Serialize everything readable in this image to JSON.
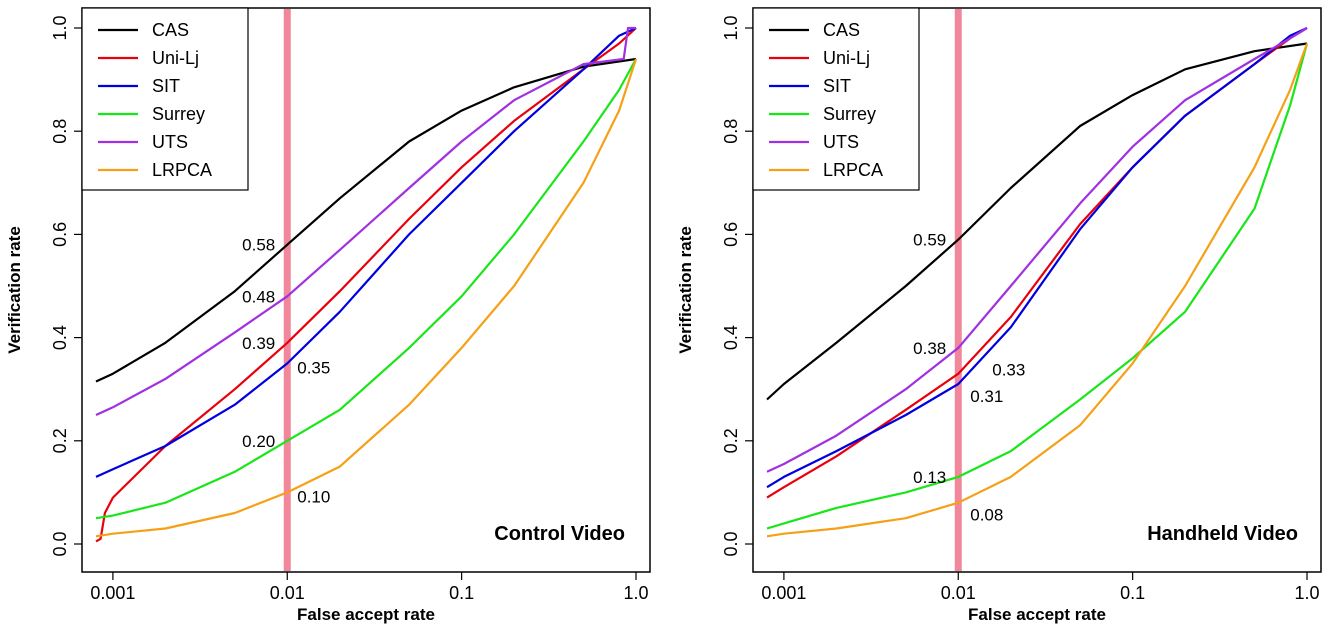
{
  "chart_data": [
    {
      "type": "line",
      "title": "Control Video",
      "xlabel": "False accept rate",
      "ylabel": "Verification rate",
      "x_scale": "log",
      "xlim": [
        0.0008,
        1.0
      ],
      "ylim": [
        0.0,
        1.0
      ],
      "x_ticks": [
        0.001,
        0.01,
        0.1,
        1.0
      ],
      "x_tick_labels": [
        "0.001",
        "0.01",
        "0.1",
        "1.0"
      ],
      "y_ticks": [
        0.0,
        0.2,
        0.4,
        0.6,
        0.8,
        1.0
      ],
      "y_tick_labels": [
        "0.0",
        "0.2",
        "0.4",
        "0.6",
        "0.8",
        "1.0"
      ],
      "legend_position": "top-left",
      "reference_line": {
        "x": 0.01,
        "color": "#F0879A"
      },
      "series": [
        {
          "name": "CAS",
          "color": "#000000",
          "x": [
            0.0008,
            0.001,
            0.002,
            0.005,
            0.01,
            0.02,
            0.05,
            0.1,
            0.2,
            0.5,
            1.0
          ],
          "y": [
            0.315,
            0.33,
            0.39,
            0.49,
            0.58,
            0.67,
            0.78,
            0.84,
            0.885,
            0.925,
            0.94
          ]
        },
        {
          "name": "Uni-Lj",
          "color": "#E8000B",
          "x": [
            0.0008,
            0.00085,
            0.0009,
            0.001,
            0.002,
            0.005,
            0.01,
            0.02,
            0.05,
            0.1,
            0.2,
            0.5,
            0.8,
            1.0
          ],
          "y": [
            0.005,
            0.01,
            0.06,
            0.09,
            0.19,
            0.3,
            0.39,
            0.49,
            0.63,
            0.73,
            0.82,
            0.92,
            0.97,
            1.0
          ]
        },
        {
          "name": "SIT",
          "color": "#0000E0",
          "x": [
            0.0008,
            0.001,
            0.002,
            0.005,
            0.01,
            0.02,
            0.05,
            0.1,
            0.2,
            0.5,
            0.8,
            1.0
          ],
          "y": [
            0.13,
            0.145,
            0.19,
            0.27,
            0.35,
            0.45,
            0.6,
            0.7,
            0.8,
            0.92,
            0.985,
            1.0
          ]
        },
        {
          "name": "Surrey",
          "color": "#19E619",
          "x": [
            0.0008,
            0.001,
            0.002,
            0.005,
            0.01,
            0.02,
            0.05,
            0.1,
            0.2,
            0.5,
            0.8,
            1.0
          ],
          "y": [
            0.05,
            0.055,
            0.08,
            0.14,
            0.2,
            0.26,
            0.38,
            0.48,
            0.6,
            0.78,
            0.88,
            0.94
          ]
        },
        {
          "name": "UTS",
          "color": "#A030E0",
          "x": [
            0.0008,
            0.001,
            0.002,
            0.005,
            0.01,
            0.02,
            0.05,
            0.1,
            0.2,
            0.5,
            0.85,
            0.9,
            1.0
          ],
          "y": [
            0.25,
            0.265,
            0.32,
            0.41,
            0.48,
            0.57,
            0.69,
            0.78,
            0.86,
            0.93,
            0.94,
            1.0,
            1.0
          ]
        },
        {
          "name": "LRPCA",
          "color": "#F5A016",
          "x": [
            0.0008,
            0.001,
            0.002,
            0.005,
            0.01,
            0.02,
            0.05,
            0.1,
            0.2,
            0.5,
            0.8,
            1.0
          ],
          "y": [
            0.015,
            0.02,
            0.03,
            0.06,
            0.1,
            0.15,
            0.27,
            0.38,
            0.5,
            0.7,
            0.84,
            0.94
          ]
        }
      ],
      "annotations": [
        {
          "text": "0.58",
          "x": 0.01,
          "y": 0.58,
          "side": "left"
        },
        {
          "text": "0.48",
          "x": 0.01,
          "y": 0.48,
          "side": "left"
        },
        {
          "text": "0.39",
          "x": 0.01,
          "y": 0.39,
          "side": "left"
        },
        {
          "text": "0.35",
          "x": 0.01,
          "y": 0.35,
          "side": "right"
        },
        {
          "text": "0.20",
          "x": 0.01,
          "y": 0.2,
          "side": "left"
        },
        {
          "text": "0.10",
          "x": 0.01,
          "y": 0.1,
          "side": "right"
        }
      ]
    },
    {
      "type": "line",
      "title": "Handheld Video",
      "xlabel": "False accept rate",
      "ylabel": "Verification rate",
      "x_scale": "log",
      "xlim": [
        0.0008,
        1.0
      ],
      "ylim": [
        0.0,
        1.0
      ],
      "x_ticks": [
        0.001,
        0.01,
        0.1,
        1.0
      ],
      "x_tick_labels": [
        "0.001",
        "0.01",
        "0.1",
        "1.0"
      ],
      "y_ticks": [
        0.0,
        0.2,
        0.4,
        0.6,
        0.8,
        1.0
      ],
      "y_tick_labels": [
        "0.0",
        "0.2",
        "0.4",
        "0.6",
        "0.8",
        "1.0"
      ],
      "legend_position": "top-left",
      "reference_line": {
        "x": 0.01,
        "color": "#F0879A"
      },
      "series": [
        {
          "name": "CAS",
          "color": "#000000",
          "x": [
            0.0008,
            0.001,
            0.002,
            0.005,
            0.01,
            0.02,
            0.05,
            0.1,
            0.2,
            0.5,
            1.0
          ],
          "y": [
            0.28,
            0.31,
            0.39,
            0.5,
            0.59,
            0.69,
            0.81,
            0.87,
            0.92,
            0.955,
            0.97
          ]
        },
        {
          "name": "Uni-Lj",
          "color": "#E8000B",
          "x": [
            0.0008,
            0.001,
            0.002,
            0.005,
            0.01,
            0.02,
            0.05,
            0.1,
            0.2,
            0.5,
            0.8,
            1.0
          ],
          "y": [
            0.09,
            0.11,
            0.17,
            0.26,
            0.33,
            0.44,
            0.62,
            0.73,
            0.83,
            0.93,
            0.98,
            1.0
          ]
        },
        {
          "name": "SIT",
          "color": "#0000E0",
          "x": [
            0.0008,
            0.001,
            0.002,
            0.005,
            0.01,
            0.02,
            0.05,
            0.1,
            0.2,
            0.5,
            0.8,
            1.0
          ],
          "y": [
            0.11,
            0.13,
            0.18,
            0.25,
            0.31,
            0.42,
            0.61,
            0.73,
            0.83,
            0.93,
            0.985,
            1.0
          ]
        },
        {
          "name": "Surrey",
          "color": "#19E619",
          "x": [
            0.0008,
            0.001,
            0.002,
            0.005,
            0.01,
            0.02,
            0.05,
            0.1,
            0.2,
            0.5,
            0.8,
            1.0
          ],
          "y": [
            0.03,
            0.04,
            0.07,
            0.1,
            0.13,
            0.18,
            0.28,
            0.36,
            0.45,
            0.65,
            0.85,
            0.97
          ]
        },
        {
          "name": "UTS",
          "color": "#A030E0",
          "x": [
            0.0008,
            0.001,
            0.002,
            0.005,
            0.01,
            0.02,
            0.05,
            0.1,
            0.2,
            0.5,
            0.8,
            1.0
          ],
          "y": [
            0.14,
            0.155,
            0.21,
            0.3,
            0.38,
            0.5,
            0.66,
            0.77,
            0.86,
            0.94,
            0.98,
            1.0
          ]
        },
        {
          "name": "LRPCA",
          "color": "#F5A016",
          "x": [
            0.0008,
            0.001,
            0.002,
            0.005,
            0.01,
            0.02,
            0.05,
            0.1,
            0.2,
            0.5,
            0.8,
            1.0
          ],
          "y": [
            0.015,
            0.02,
            0.03,
            0.05,
            0.08,
            0.13,
            0.23,
            0.35,
            0.5,
            0.73,
            0.88,
            0.97
          ]
        }
      ],
      "annotations": [
        {
          "text": "0.59",
          "x": 0.01,
          "y": 0.59,
          "side": "left"
        },
        {
          "text": "0.38",
          "x": 0.01,
          "y": 0.38,
          "side": "left"
        },
        {
          "text": "0.33",
          "x": 0.01,
          "y": 0.33,
          "side": "right-far"
        },
        {
          "text": "0.31",
          "x": 0.01,
          "y": 0.31,
          "side": "right-low"
        },
        {
          "text": "0.13",
          "x": 0.01,
          "y": 0.13,
          "side": "left"
        },
        {
          "text": "0.08",
          "x": 0.01,
          "y": 0.08,
          "side": "right-low"
        }
      ]
    }
  ]
}
